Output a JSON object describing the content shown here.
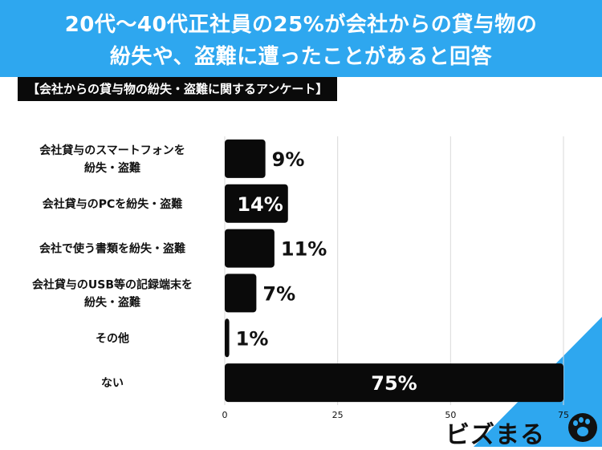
{
  "header": {
    "title_line1": "20代〜40代正社員の25%が会社からの貸与物の",
    "title_line2": "紛失や、盗難に遭ったことがあると回答",
    "subtitle": "【会社からの貸与物の紛失・盗難に関するアンケート】"
  },
  "logo": {
    "text": "ビズまる"
  },
  "colors": {
    "brand": "#2ea7ef",
    "bar": "#0a0a0a"
  },
  "chart_data": {
    "type": "bar",
    "orientation": "horizontal",
    "categories": [
      [
        "会社貸与のスマートフォンを",
        "紛失・盗難"
      ],
      [
        "会社貸与のPCを紛失・盗難"
      ],
      [
        "会社で使う書類を紛失・盗難"
      ],
      [
        "会社貸与のUSB等の記録端末を",
        "紛失・盗難"
      ],
      [
        "その他"
      ],
      [
        "ない"
      ]
    ],
    "values": [
      9,
      14,
      11,
      7,
      1,
      75
    ],
    "value_labels": [
      "9%",
      "14%",
      "11%",
      "7%",
      "1%",
      "75%"
    ],
    "xlim": [
      0,
      75
    ],
    "xticks": [
      "0",
      "25",
      "50",
      "75"
    ],
    "grid": true
  }
}
